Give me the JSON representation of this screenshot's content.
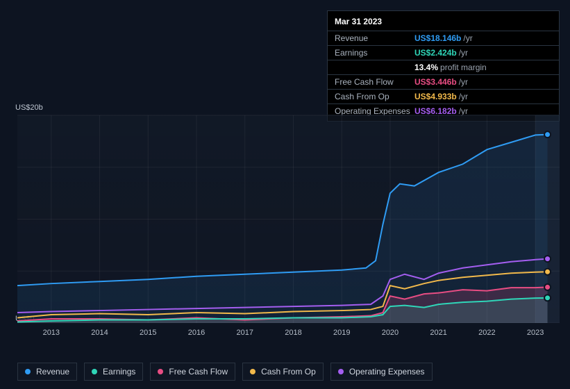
{
  "tooltip": {
    "date": "Mar 31 2023",
    "rows": [
      {
        "label": "Revenue",
        "value": "US$18.146b",
        "suffix": "/yr",
        "color": "#2f9cf4"
      },
      {
        "label": "Earnings",
        "value": "US$2.424b",
        "suffix": "/yr",
        "color": "#2fd6b8"
      },
      {
        "label": "",
        "value": "13.4%",
        "suffix": "profit margin",
        "color": "#ffffff",
        "indent": true
      },
      {
        "label": "Free Cash Flow",
        "value": "US$3.446b",
        "suffix": "/yr",
        "color": "#e84d83"
      },
      {
        "label": "Cash From Op",
        "value": "US$4.933b",
        "suffix": "/yr",
        "color": "#f2b94b"
      },
      {
        "label": "Operating Expenses",
        "value": "US$6.182b",
        "suffix": "/yr",
        "color": "#a45ef0"
      }
    ]
  },
  "chart": {
    "type": "line-area",
    "y_axis": {
      "top_label": "US$20b",
      "bottom_label": "US$0",
      "ymin": 0,
      "ymax": 20
    },
    "x_axis": {
      "years": [
        2013,
        2014,
        2015,
        2016,
        2017,
        2018,
        2019,
        2020,
        2021,
        2022,
        2023
      ],
      "min": 2012.3,
      "max": 2023.5
    },
    "future_from": 2023.0,
    "marker_x": 2023.25,
    "background": "#0d1421",
    "grid_color": "rgba(255,255,255,0.06)",
    "series": [
      {
        "name": "Revenue",
        "color": "#2f9cf4",
        "area": true,
        "area_opacity": 0.1,
        "width": 2,
        "points": [
          [
            2012.3,
            3.6
          ],
          [
            2013,
            3.8
          ],
          [
            2014,
            4.0
          ],
          [
            2015,
            4.2
          ],
          [
            2016,
            4.5
          ],
          [
            2017,
            4.7
          ],
          [
            2018,
            4.9
          ],
          [
            2019,
            5.1
          ],
          [
            2019.5,
            5.3
          ],
          [
            2019.7,
            6.0
          ],
          [
            2019.85,
            9.5
          ],
          [
            2020.0,
            12.5
          ],
          [
            2020.2,
            13.4
          ],
          [
            2020.5,
            13.2
          ],
          [
            2021,
            14.5
          ],
          [
            2021.5,
            15.3
          ],
          [
            2022,
            16.7
          ],
          [
            2022.5,
            17.4
          ],
          [
            2023,
            18.1
          ],
          [
            2023.25,
            18.15
          ]
        ]
      },
      {
        "name": "Operating Expenses",
        "color": "#a45ef0",
        "area": false,
        "width": 2,
        "points": [
          [
            2012.3,
            1.0
          ],
          [
            2013,
            1.1
          ],
          [
            2014,
            1.2
          ],
          [
            2015,
            1.3
          ],
          [
            2016,
            1.4
          ],
          [
            2017,
            1.5
          ],
          [
            2018,
            1.6
          ],
          [
            2019,
            1.7
          ],
          [
            2019.6,
            1.8
          ],
          [
            2019.85,
            2.6
          ],
          [
            2020.0,
            4.2
          ],
          [
            2020.3,
            4.7
          ],
          [
            2020.7,
            4.2
          ],
          [
            2021,
            4.8
          ],
          [
            2021.5,
            5.3
          ],
          [
            2022,
            5.6
          ],
          [
            2022.5,
            5.9
          ],
          [
            2023,
            6.1
          ],
          [
            2023.25,
            6.18
          ]
        ]
      },
      {
        "name": "Cash From Op",
        "color": "#f2b94b",
        "area": false,
        "width": 2,
        "points": [
          [
            2012.3,
            0.5
          ],
          [
            2013,
            0.8
          ],
          [
            2014,
            0.9
          ],
          [
            2015,
            0.8
          ],
          [
            2016,
            1.0
          ],
          [
            2017,
            0.9
          ],
          [
            2018,
            1.1
          ],
          [
            2019,
            1.2
          ],
          [
            2019.6,
            1.3
          ],
          [
            2019.85,
            1.6
          ],
          [
            2020.0,
            3.6
          ],
          [
            2020.3,
            3.3
          ],
          [
            2020.7,
            3.8
          ],
          [
            2021,
            4.1
          ],
          [
            2021.5,
            4.4
          ],
          [
            2022,
            4.6
          ],
          [
            2022.5,
            4.8
          ],
          [
            2023,
            4.9
          ],
          [
            2023.25,
            4.93
          ]
        ]
      },
      {
        "name": "Free Cash Flow",
        "color": "#e84d83",
        "area": true,
        "area_opacity": 0.2,
        "width": 2,
        "points": [
          [
            2012.3,
            0.2
          ],
          [
            2013,
            0.4
          ],
          [
            2014,
            0.4
          ],
          [
            2015,
            0.3
          ],
          [
            2016,
            0.5
          ],
          [
            2017,
            0.3
          ],
          [
            2018,
            0.5
          ],
          [
            2019,
            0.6
          ],
          [
            2019.6,
            0.7
          ],
          [
            2019.85,
            1.0
          ],
          [
            2020.0,
            2.6
          ],
          [
            2020.3,
            2.3
          ],
          [
            2020.7,
            2.8
          ],
          [
            2021,
            2.9
          ],
          [
            2021.5,
            3.2
          ],
          [
            2022,
            3.1
          ],
          [
            2022.5,
            3.4
          ],
          [
            2023,
            3.4
          ],
          [
            2023.25,
            3.45
          ]
        ]
      },
      {
        "name": "Earnings",
        "color": "#2fd6b8",
        "area": true,
        "area_opacity": 0.15,
        "width": 2,
        "points": [
          [
            2012.3,
            0.1
          ],
          [
            2013,
            0.2
          ],
          [
            2014,
            0.3
          ],
          [
            2015,
            0.3
          ],
          [
            2016,
            0.4
          ],
          [
            2017,
            0.4
          ],
          [
            2018,
            0.5
          ],
          [
            2019,
            0.5
          ],
          [
            2019.6,
            0.6
          ],
          [
            2019.85,
            0.8
          ],
          [
            2020.0,
            1.6
          ],
          [
            2020.3,
            1.7
          ],
          [
            2020.7,
            1.5
          ],
          [
            2021,
            1.8
          ],
          [
            2021.5,
            2.0
          ],
          [
            2022,
            2.1
          ],
          [
            2022.5,
            2.3
          ],
          [
            2023,
            2.4
          ],
          [
            2023.25,
            2.42
          ]
        ]
      }
    ],
    "legend": [
      {
        "label": "Revenue",
        "color": "#2f9cf4"
      },
      {
        "label": "Earnings",
        "color": "#2fd6b8"
      },
      {
        "label": "Free Cash Flow",
        "color": "#e84d83"
      },
      {
        "label": "Cash From Op",
        "color": "#f2b94b"
      },
      {
        "label": "Operating Expenses",
        "color": "#a45ef0"
      }
    ]
  }
}
